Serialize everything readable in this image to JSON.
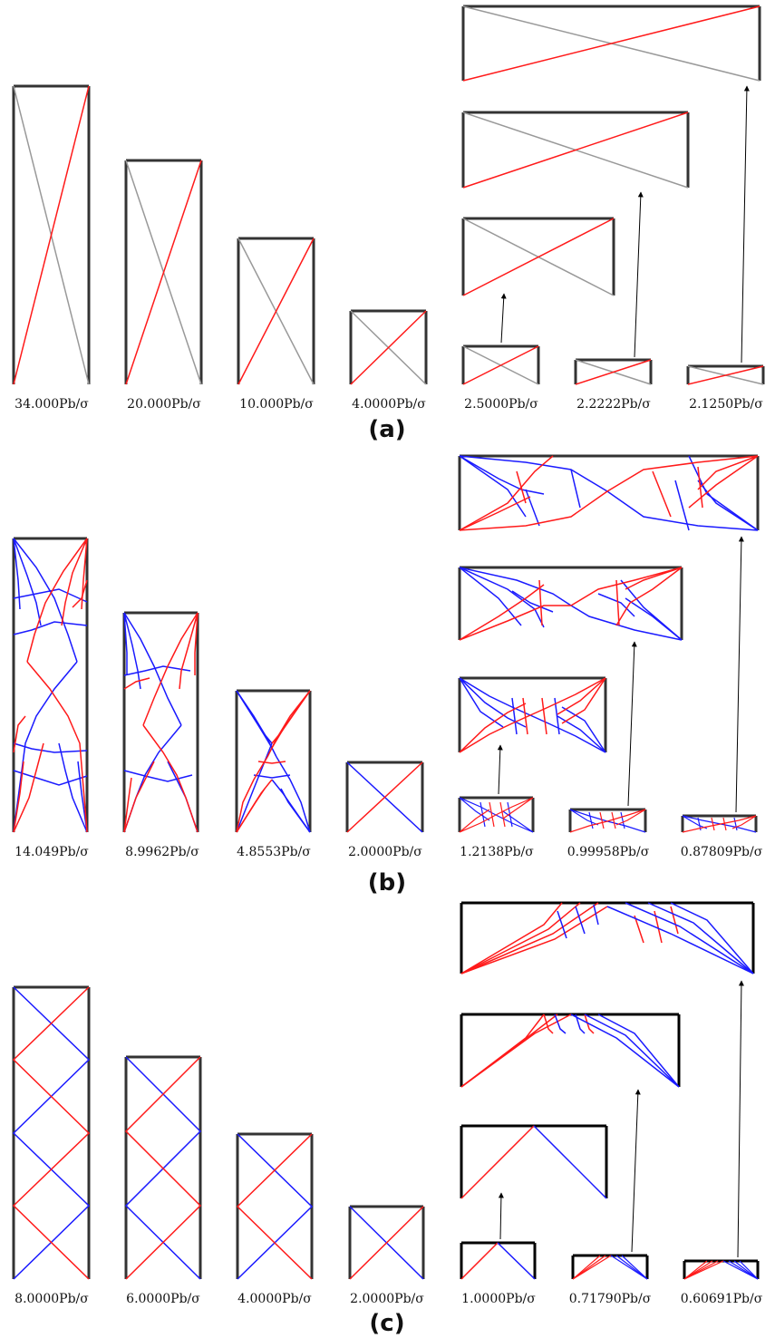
{
  "colors": {
    "frame": "#333333",
    "tension": "#ff1a1a",
    "compression": "#1a1aff",
    "inactive": "#999999",
    "arrow": "#000000"
  },
  "panels": [
    {
      "label": "(a)",
      "values": [
        "34.000Pb/σ",
        "20.000Pb/σ",
        "10.000Pb/σ",
        "4.0000Pb/σ",
        "2.5000Pb/σ",
        "2.2222Pb/σ",
        "2.1250Pb/σ"
      ]
    },
    {
      "label": "(b)",
      "values": [
        "14.049Pb/σ",
        "8.9962Pb/σ",
        "4.8553Pb/σ",
        "2.0000Pb/σ",
        "1.2138Pb/σ",
        "0.99958Pb/σ",
        "0.87809Pb/σ"
      ]
    },
    {
      "label": "(c)",
      "values": [
        "8.0000Pb/σ",
        "6.0000Pb/σ",
        "4.0000Pb/σ",
        "2.0000Pb/σ",
        "1.0000Pb/σ",
        "0.71790Pb/σ",
        "0.60691Pb/σ"
      ]
    }
  ]
}
